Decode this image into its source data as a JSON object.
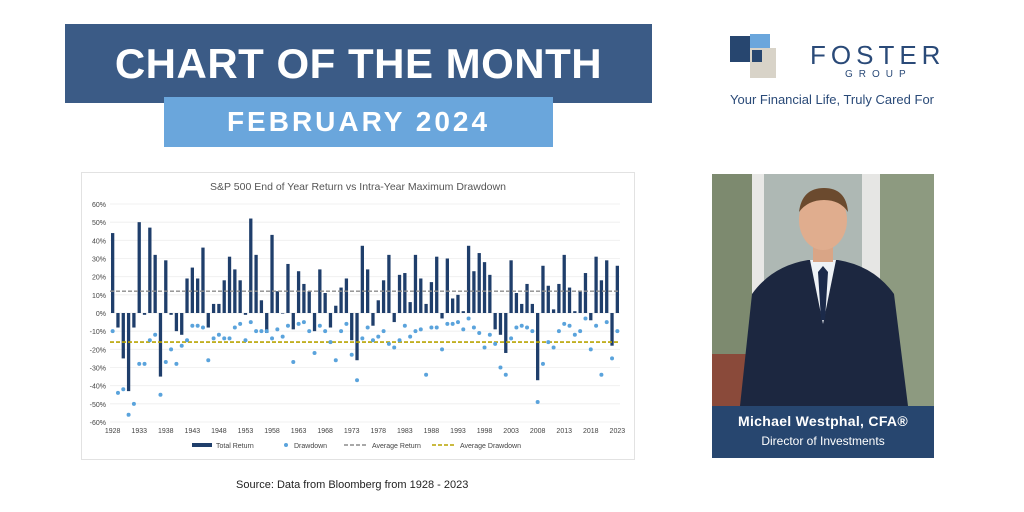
{
  "header": {
    "title": "CHART OF THE MONTH",
    "subtitle": "FEBRUARY 2024"
  },
  "brand": {
    "name": "FOSTER",
    "group": "GROUP",
    "tagline": "Your Financial Life, Truly Cared For",
    "color": "#2a4a78"
  },
  "person": {
    "name": "Michael Westphal, CFA®",
    "title": "Director of Investments"
  },
  "source": "Source: Data from Bloomberg from 1928 - 2023",
  "colors": {
    "return_bar": "#1f3e6b",
    "drawdown_dot": "#5aa3dc",
    "avg_return_line": "#8c8c8c",
    "avg_drawdown_line": "#b8a400"
  },
  "chart_data": {
    "type": "bar",
    "title": "S&P 500 End of Year Return vs Intra-Year Maximum Drawdown",
    "x": [
      1928,
      1929,
      1930,
      1931,
      1932,
      1933,
      1934,
      1935,
      1936,
      1937,
      1938,
      1939,
      1940,
      1941,
      1942,
      1943,
      1944,
      1945,
      1946,
      1947,
      1948,
      1949,
      1950,
      1951,
      1952,
      1953,
      1954,
      1955,
      1956,
      1957,
      1958,
      1959,
      1960,
      1961,
      1962,
      1963,
      1964,
      1965,
      1966,
      1967,
      1968,
      1969,
      1970,
      1971,
      1972,
      1973,
      1974,
      1975,
      1976,
      1977,
      1978,
      1979,
      1980,
      1981,
      1982,
      1983,
      1984,
      1985,
      1986,
      1987,
      1988,
      1989,
      1990,
      1991,
      1992,
      1993,
      1994,
      1995,
      1996,
      1997,
      1998,
      1999,
      2000,
      2001,
      2002,
      2003,
      2004,
      2005,
      2006,
      2007,
      2008,
      2009,
      2010,
      2011,
      2012,
      2013,
      2014,
      2015,
      2016,
      2017,
      2018,
      2019,
      2020,
      2021,
      2022,
      2023
    ],
    "x_ticks": [
      "1928",
      "1933",
      "1938",
      "1943",
      "1948",
      "1953",
      "1958",
      "1963",
      "1968",
      "1973",
      "1978",
      "1983",
      "1988",
      "1993",
      "1998",
      "2003",
      "2008",
      "2013",
      "2018",
      "2023"
    ],
    "ylim": [
      -60,
      60
    ],
    "y_ticks": [
      "60%",
      "50%",
      "40%",
      "30%",
      "20%",
      "10%",
      "0%",
      "-10%",
      "-20%",
      "-30%",
      "-40%",
      "-50%",
      "-60%"
    ],
    "series": [
      {
        "name": "Total Return",
        "kind": "bar",
        "values": [
          44,
          -8,
          -25,
          -43,
          -8,
          50,
          -1,
          47,
          32,
          -35,
          29,
          -1,
          -10,
          -12,
          19,
          25,
          19,
          36,
          -8,
          5,
          5,
          18,
          31,
          24,
          18,
          -1,
          52,
          32,
          7,
          -11,
          43,
          12,
          0,
          27,
          -9,
          23,
          16,
          12,
          -10,
          24,
          11,
          -8,
          4,
          14,
          19,
          -15,
          -26,
          37,
          24,
          -7,
          7,
          18,
          32,
          -5,
          21,
          22,
          6,
          32,
          19,
          5,
          17,
          31,
          -3,
          30,
          8,
          10,
          1,
          37,
          23,
          33,
          28,
          21,
          -9,
          -12,
          -22,
          29,
          11,
          5,
          16,
          5,
          -37,
          26,
          15,
          2,
          16,
          32,
          14,
          1,
          12,
          22,
          -4,
          31,
          18,
          29,
          -18,
          26
        ]
      },
      {
        "name": "Drawdown",
        "kind": "dot",
        "values": [
          -10,
          -44,
          -42,
          -56,
          -50,
          -28,
          -28,
          -15,
          -12,
          -45,
          -27,
          -20,
          -28,
          -18,
          -15,
          -7,
          -7,
          -8,
          -26,
          -14,
          -12,
          -14,
          -14,
          -8,
          -6,
          -15,
          -5,
          -10,
          -10,
          -10,
          -14,
          -9,
          -13,
          -7,
          -27,
          -6,
          -5,
          -10,
          -22,
          -7,
          -10,
          -16,
          -26,
          -10,
          -6,
          -23,
          -37,
          -14,
          -8,
          -15,
          -13,
          -10,
          -17,
          -19,
          -15,
          -7,
          -13,
          -10,
          -9,
          -34,
          -8,
          -8,
          -20,
          -6,
          -6,
          -5,
          -9,
          -3,
          -8,
          -11,
          -19,
          -12,
          -17,
          -30,
          -34,
          -14,
          -8,
          -7,
          -8,
          -10,
          -49,
          -28,
          -16,
          -19,
          -10,
          -6,
          -7,
          -12,
          -10,
          -3,
          -20,
          -7,
          -34,
          -5,
          -25,
          -10
        ]
      },
      {
        "name": "Average Return",
        "kind": "line",
        "value": 12
      },
      {
        "name": "Average Drawdown",
        "kind": "line",
        "value": -16
      }
    ]
  }
}
